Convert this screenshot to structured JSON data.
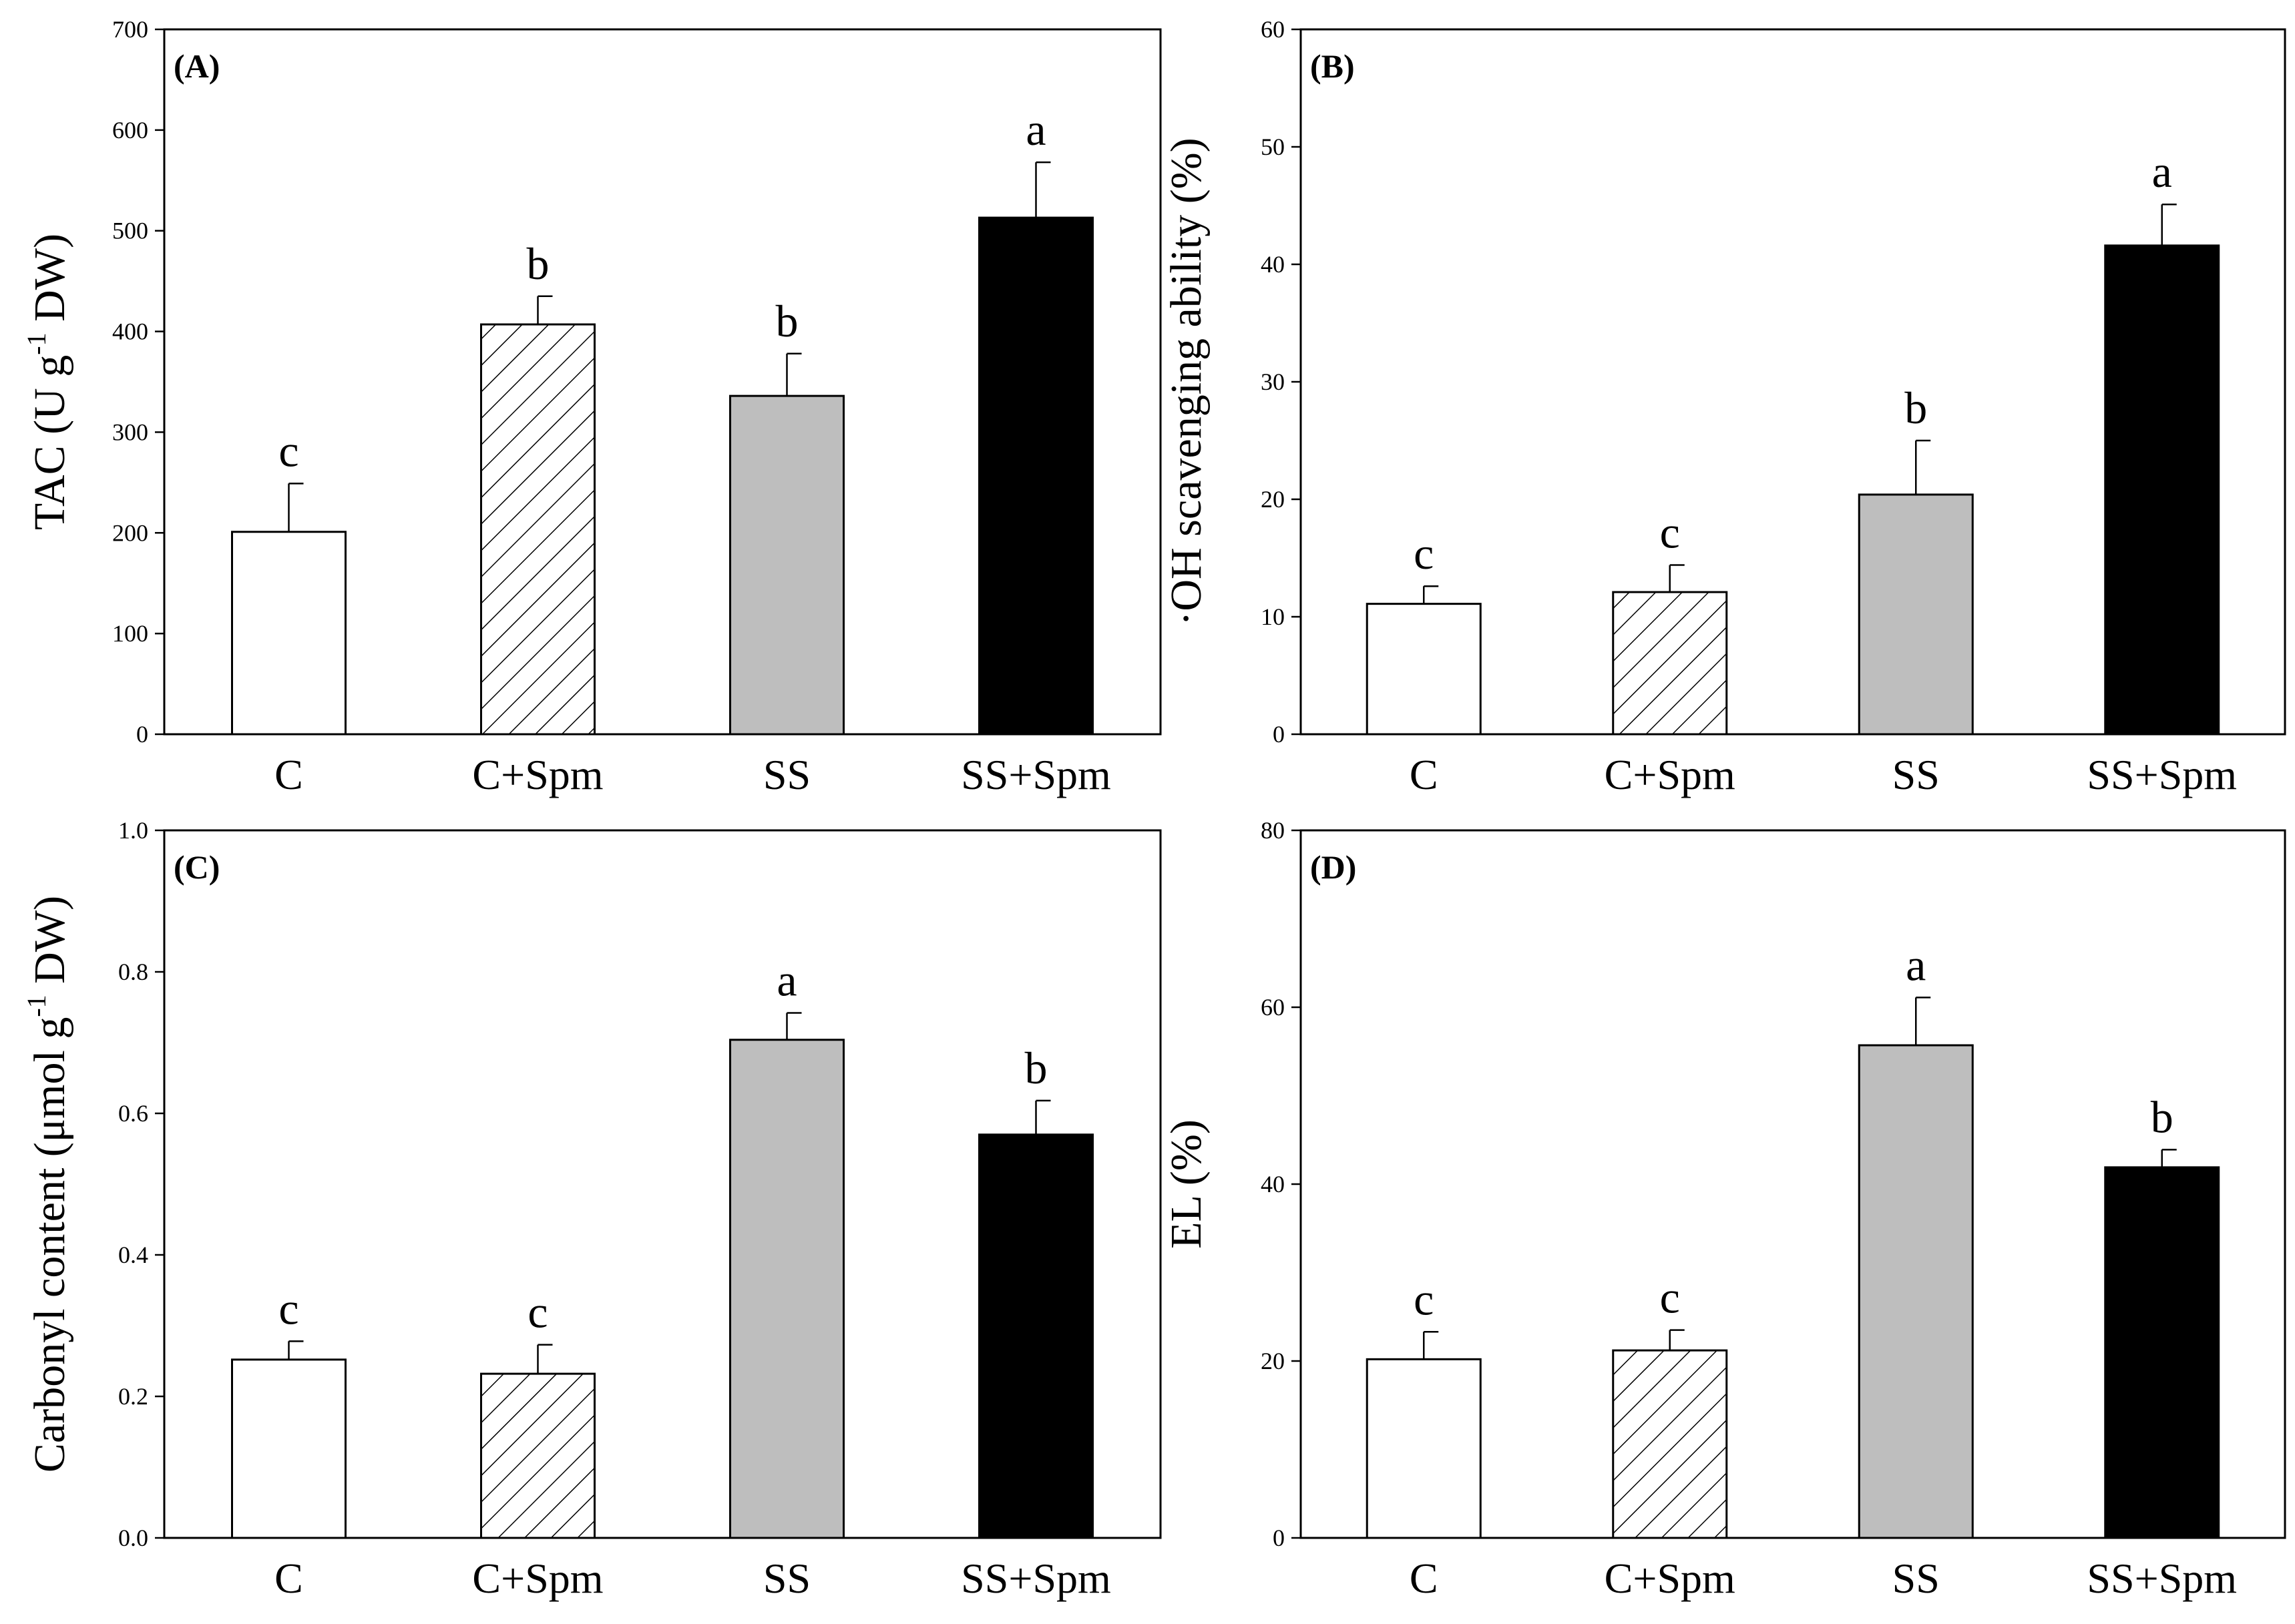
{
  "colors": {
    "C": "#ffffff",
    "C+Spm": "hatch",
    "SS": "#bebebe",
    "SS+Spm": "#000000",
    "axis": "#000000"
  },
  "chart_data": [
    {
      "type": "bar",
      "panel_label": "(A)",
      "ylabel": {
        "main": "TAC (U g",
        "sup": "-1",
        "tail": " DW)"
      },
      "xlabel": "",
      "categories": [
        "C",
        "C+Spm",
        "SS",
        "SS+Spm"
      ],
      "values": [
        201,
        407,
        336,
        513
      ],
      "errors": [
        48,
        28,
        42,
        55
      ],
      "letters": [
        "c",
        "b",
        "b",
        "a"
      ],
      "ylim": [
        0,
        700
      ],
      "yticks": [
        0,
        100,
        200,
        300,
        400,
        500,
        600,
        700
      ],
      "ytick_labels": [
        "0",
        "100",
        "200",
        "300",
        "400",
        "500",
        "600",
        "700"
      ],
      "grid": false
    },
    {
      "type": "bar",
      "panel_label": "(B)",
      "ylabel": {
        "main": "·OH scavenging ability (%)",
        "sup": "",
        "tail": ""
      },
      "xlabel": "",
      "categories": [
        "C",
        "C+Spm",
        "SS",
        "SS+Spm"
      ],
      "values": [
        11.1,
        12.1,
        20.4,
        41.6
      ],
      "errors": [
        1.5,
        2.3,
        4.6,
        3.5
      ],
      "letters": [
        "c",
        "c",
        "b",
        "a"
      ],
      "ylim": [
        0,
        60
      ],
      "yticks": [
        0,
        10,
        20,
        30,
        40,
        50,
        60
      ],
      "ytick_labels": [
        "0",
        "10",
        "20",
        "30",
        "40",
        "50",
        "60"
      ],
      "grid": false
    },
    {
      "type": "bar",
      "panel_label": "(C)",
      "ylabel": {
        "main": "Carbonyl content (μmol g",
        "sup": "-1",
        "tail": " DW)"
      },
      "xlabel": "",
      "categories": [
        "C",
        "C+Spm",
        "SS",
        "SS+Spm"
      ],
      "values": [
        0.252,
        0.232,
        0.704,
        0.57
      ],
      "errors": [
        0.026,
        0.041,
        0.038,
        0.048
      ],
      "letters": [
        "c",
        "c",
        "a",
        "b"
      ],
      "ylim": [
        0,
        1.0
      ],
      "yticks": [
        0,
        0.2,
        0.4,
        0.6,
        0.8,
        1.0
      ],
      "ytick_labels": [
        "0.0",
        "0.2",
        "0.4",
        "0.6",
        "0.8",
        "1.0"
      ],
      "grid": false
    },
    {
      "type": "bar",
      "panel_label": "(D)",
      "ylabel": {
        "main": "EL (%)",
        "sup": "",
        "tail": ""
      },
      "xlabel": "",
      "categories": [
        "C",
        "C+Spm",
        "SS",
        "SS+Spm"
      ],
      "values": [
        20.2,
        21.2,
        55.7,
        41.9
      ],
      "errors": [
        3.1,
        2.3,
        5.4,
        2.0
      ],
      "letters": [
        "c",
        "c",
        "a",
        "b"
      ],
      "ylim": [
        0,
        80
      ],
      "yticks": [
        0,
        20,
        40,
        60,
        80
      ],
      "ytick_labels": [
        "0",
        "20",
        "40",
        "60",
        "80"
      ],
      "grid": false
    }
  ]
}
